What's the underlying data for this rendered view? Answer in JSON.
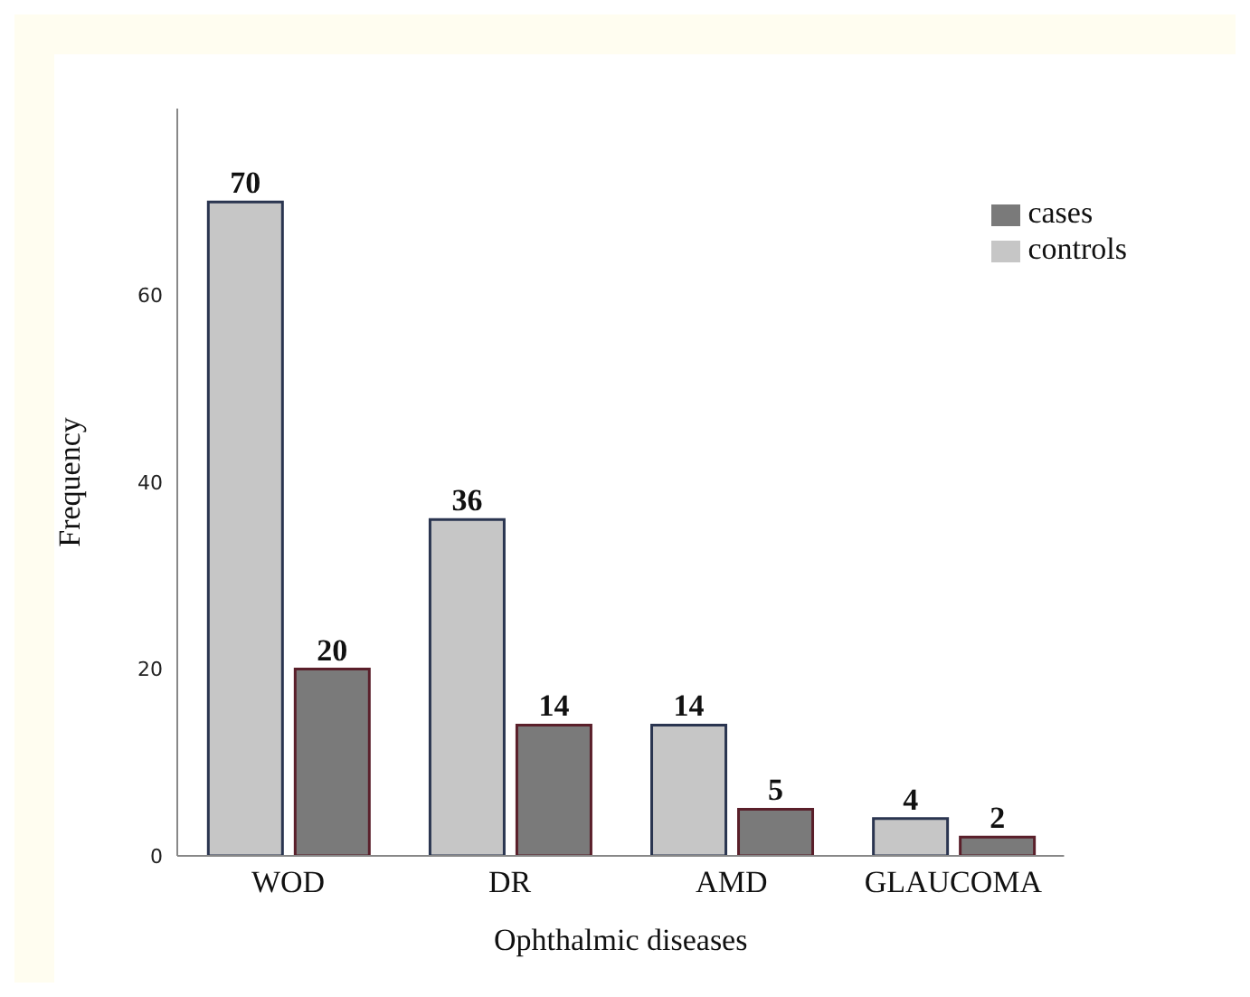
{
  "chart_data": {
    "type": "bar",
    "xlabel": "Ophthalmic  diseases",
    "ylabel": "Frequency",
    "categories": [
      "WOD",
      "DR",
      "AMD",
      "GLAUCOMA"
    ],
    "series": [
      {
        "name": "controls",
        "color": "#c6c6c6",
        "values": [
          70,
          36,
          14,
          4
        ]
      },
      {
        "name": "cases",
        "color": "#7a7a7a",
        "values": [
          20,
          14,
          5,
          2
        ]
      }
    ],
    "ylim": [
      0,
      80
    ],
    "yticks": [
      0,
      20,
      40,
      60
    ],
    "data_labels": true,
    "legend": "top right",
    "grid": false
  }
}
